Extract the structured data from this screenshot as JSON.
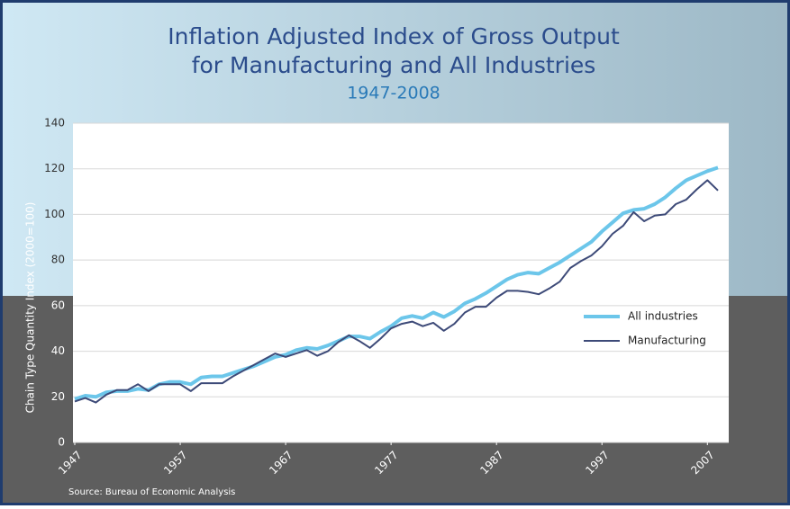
{
  "chart_data": {
    "type": "line",
    "title": "Inflation Adjusted Index of Gross Output",
    "title_line2": "for Manufacturing and All Industries",
    "subtitle": "1947-2008",
    "ylabel": "Chain Type Quantity Index   (2000=100)",
    "source": "Source: Bureau of Economic Analysis",
    "x": [
      1947,
      1948,
      1949,
      1950,
      1951,
      1952,
      1953,
      1954,
      1955,
      1956,
      1957,
      1958,
      1959,
      1960,
      1961,
      1962,
      1963,
      1964,
      1965,
      1966,
      1967,
      1968,
      1969,
      1970,
      1971,
      1972,
      1973,
      1974,
      1975,
      1976,
      1977,
      1978,
      1979,
      1980,
      1981,
      1982,
      1983,
      1984,
      1985,
      1986,
      1987,
      1988,
      1989,
      1990,
      1991,
      1992,
      1993,
      1994,
      1995,
      1996,
      1997,
      1998,
      1999,
      2000,
      2001,
      2002,
      2003,
      2004,
      2005,
      2006,
      2007,
      2008
    ],
    "series": [
      {
        "name": "All industries",
        "color": "#6cc6ea",
        "values": [
          19,
          20.5,
          20,
          22,
          22.5,
          22.5,
          23.5,
          23,
          25.5,
          26.5,
          26.5,
          25.5,
          28.5,
          29,
          29,
          30.5,
          32,
          33.5,
          35.5,
          37.5,
          38.5,
          40.5,
          41.5,
          41,
          42.5,
          44.5,
          46.5,
          46.5,
          45.5,
          48.5,
          51,
          54.5,
          55.5,
          54.5,
          57,
          55,
          57.5,
          61,
          63,
          65.5,
          68.5,
          71.5,
          73.5,
          74.5,
          74,
          76.5,
          79,
          82,
          85,
          88,
          92.5,
          96.5,
          100.5,
          102,
          102.5,
          104.5,
          107.5,
          111.5,
          115,
          117,
          119,
          120.5
        ]
      },
      {
        "name": "Manufacturing",
        "color": "#3d4a78",
        "values": [
          18,
          19.5,
          17.5,
          21,
          23,
          23,
          25.5,
          22.5,
          25.5,
          25.5,
          25.5,
          22.5,
          26,
          26,
          26,
          29,
          31.5,
          34,
          36.5,
          39,
          37.5,
          39,
          40.5,
          38,
          40,
          44,
          47,
          44.5,
          41.5,
          45.5,
          50,
          52,
          53,
          51,
          52.5,
          49,
          52,
          57,
          59.5,
          59.5,
          63.5,
          66.5,
          66.5,
          66,
          65,
          67.5,
          70.5,
          76.5,
          79.5,
          82,
          86,
          91.5,
          95,
          101,
          97,
          99.5,
          100,
          104.5,
          106.5,
          111,
          115,
          110.5
        ]
      }
    ],
    "xlim": [
      1947,
      2008
    ],
    "xticks": [
      1947,
      1957,
      1967,
      1977,
      1987,
      1997,
      2007
    ],
    "ylim": [
      0,
      140
    ],
    "yticks": [
      0,
      20,
      40,
      60,
      80,
      100,
      120,
      140
    ],
    "grid": true
  }
}
